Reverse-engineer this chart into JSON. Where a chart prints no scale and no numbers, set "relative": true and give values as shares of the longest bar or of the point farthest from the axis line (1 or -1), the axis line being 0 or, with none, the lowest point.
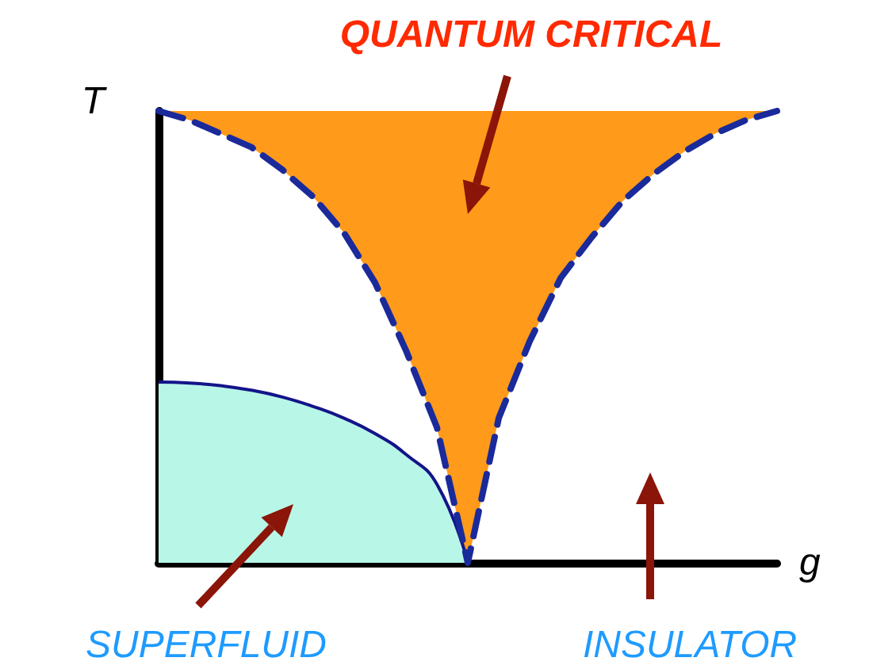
{
  "chart_data": {
    "type": "area",
    "relative": true,
    "tick_labels": false,
    "xlabel": "g",
    "ylabel": "T",
    "annotations": [
      "QUANTUM CRITICAL",
      "SUPERFLUID",
      "INSULATOR"
    ],
    "categories": [
      null,
      null,
      null,
      null,
      null,
      null,
      null,
      null,
      null,
      null,
      null,
      null,
      null,
      null,
      null,
      null,
      null,
      null,
      null,
      null,
      null
    ],
    "series": [
      {
        "type": "area",
        "color": "#b8f7e8",
        "values": [
          0.4,
          0.398,
          0.392,
          0.382,
          0.367,
          0.346,
          0.32,
          0.286,
          0.24,
          0.174,
          0,
          null,
          null,
          null,
          null,
          null,
          null,
          null,
          null,
          null,
          null
        ]
      },
      {
        "type": "line",
        "color": "#1a2a9a",
        "line_style": "dashed",
        "values": [
          1,
          0.98,
          0.95,
          0.92,
          0.87,
          0.81,
          0.73,
          0.62,
          0.47,
          0.3,
          0,
          0.32,
          0.49,
          0.63,
          0.72,
          0.8,
          0.86,
          0.91,
          0.95,
          0.98,
          1
        ],
        "lower": [
          1,
          0.98,
          0.95,
          0.92,
          0.87,
          0.81,
          0.73,
          0.62,
          0.47,
          0.3,
          0,
          0.32,
          0.49,
          0.63,
          0.72,
          0.8,
          0.86,
          0.91,
          0.95,
          0.98,
          1
        ],
        "upper": [
          1,
          1,
          1,
          1,
          1,
          1,
          1,
          1,
          1,
          1,
          1,
          1,
          1,
          1,
          1,
          1,
          1,
          1,
          1,
          1,
          1
        ]
      }
    ]
  }
}
